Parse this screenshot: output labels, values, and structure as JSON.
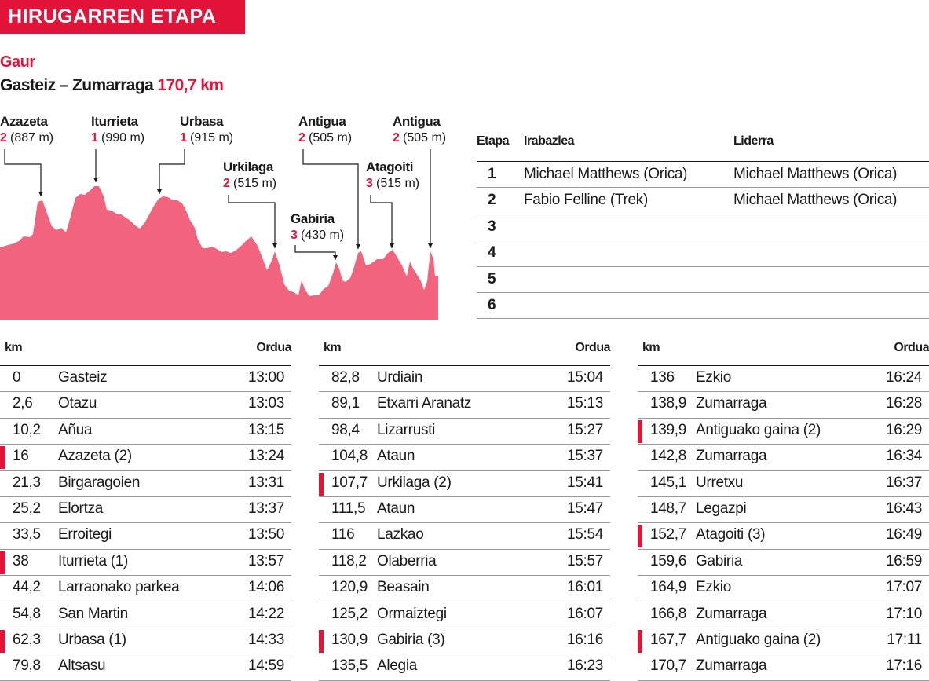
{
  "header": {
    "banner": "HIRUGARREN ETAPA",
    "today": "Gaur",
    "route": "Gasteiz – Zumarraga",
    "distance": "170,7 km"
  },
  "profile": {
    "color": "#f2647e",
    "accent": "#e3143a",
    "climbs": [
      {
        "name": "Azazeta",
        "category": "2",
        "altitude": "(887 m)"
      },
      {
        "name": "Iturrieta",
        "category": "1",
        "altitude": "(990 m)"
      },
      {
        "name": "Urbasa",
        "category": "1",
        "altitude": "(915 m)"
      },
      {
        "name": "Urkilaga",
        "category": "2",
        "altitude": "(515 m)"
      },
      {
        "name": "Gabiria",
        "category": "3",
        "altitude": "(430 m)"
      },
      {
        "name": "Antigua",
        "category": "2",
        "altitude": "(505 m)"
      },
      {
        "name": "Atagoiti",
        "category": "3",
        "altitude": "(515 m)"
      },
      {
        "name": "Antigua",
        "category": "2",
        "altitude": "(505 m)"
      }
    ]
  },
  "results": {
    "headers": {
      "stage": "Etapa",
      "winner": "Irabazlea",
      "leader": "Liderra"
    },
    "rows": [
      {
        "stage": "1",
        "winner": "Michael Matthews (Orica)",
        "leader": "Michael Matthews (Orica)"
      },
      {
        "stage": "2",
        "winner": "Fabio Felline (Trek)",
        "leader": "Michael Matthews (Orica)"
      },
      {
        "stage": "3",
        "winner": "",
        "leader": ""
      },
      {
        "stage": "4",
        "winner": "",
        "leader": ""
      },
      {
        "stage": "5",
        "winner": "",
        "leader": ""
      },
      {
        "stage": "6",
        "winner": "",
        "leader": ""
      }
    ]
  },
  "schedule": {
    "headers": {
      "km": "km",
      "time": "Orduа"
    },
    "columns": [
      [
        {
          "km": "0",
          "place": "Gasteiz",
          "time": "13:00",
          "climb": false
        },
        {
          "km": "2,6",
          "place": "Otazu",
          "time": "13:03",
          "climb": false
        },
        {
          "km": "10,2",
          "place": "Añua",
          "time": "13:15",
          "climb": false
        },
        {
          "km": "16",
          "place": "Azazeta (2)",
          "time": "13:24",
          "climb": true
        },
        {
          "km": "21,3",
          "place": "Birgaragoien",
          "time": "13:31",
          "climb": false
        },
        {
          "km": "25,2",
          "place": "Elortza",
          "time": "13:37",
          "climb": false
        },
        {
          "km": "33,5",
          "place": "Erroitegi",
          "time": "13:50",
          "climb": false
        },
        {
          "km": "38",
          "place": "Iturrieta (1)",
          "time": "13:57",
          "climb": true
        },
        {
          "km": "44,2",
          "place": "Larraonako parkea",
          "time": "14:06",
          "climb": false
        },
        {
          "km": "54,8",
          "place": "San Martin",
          "time": "14:22",
          "climb": false
        },
        {
          "km": "62,3",
          "place": "Urbasa (1)",
          "time": "14:33",
          "climb": true
        },
        {
          "km": "79,8",
          "place": "Altsasu",
          "time": "14:59",
          "climb": false
        }
      ],
      [
        {
          "km": "82,8",
          "place": "Urdiain",
          "time": "15:04",
          "climb": false
        },
        {
          "km": "89,1",
          "place": "Etxarri Aranatz",
          "time": "15:13",
          "climb": false
        },
        {
          "km": "98,4",
          "place": "Lizarrusti",
          "time": "15:27",
          "climb": false
        },
        {
          "km": "104,8",
          "place": "Ataun",
          "time": "15:37",
          "climb": false
        },
        {
          "km": "107,7",
          "place": "Urkilaga (2)",
          "time": "15:41",
          "climb": true
        },
        {
          "km": "111,5",
          "place": "Ataun",
          "time": "15:47",
          "climb": false
        },
        {
          "km": "116",
          "place": "Lazkao",
          "time": "15:54",
          "climb": false
        },
        {
          "km": "118,2",
          "place": "Olaberria",
          "time": "15:57",
          "climb": false
        },
        {
          "km": "120,9",
          "place": "Beasain",
          "time": "16:01",
          "climb": false
        },
        {
          "km": "125,2",
          "place": "Ormaiztegi",
          "time": "16:07",
          "climb": false
        },
        {
          "km": "130,9",
          "place": "Gabiria (3)",
          "time": "16:16",
          "climb": true
        },
        {
          "km": "135,5",
          "place": "Alegia",
          "time": "16:23",
          "climb": false
        }
      ],
      [
        {
          "km": "136",
          "place": "Ezkio",
          "time": "16:24",
          "climb": false
        },
        {
          "km": "138,9",
          "place": "Zumarraga",
          "time": "16:28",
          "climb": false
        },
        {
          "km": "139,9",
          "place": "Antiguako gaina (2)",
          "time": "16:29",
          "climb": true
        },
        {
          "km": "142,8",
          "place": "Zumarraga",
          "time": "16:34",
          "climb": false
        },
        {
          "km": "145,1",
          "place": "Urretxu",
          "time": "16:37",
          "climb": false
        },
        {
          "km": "148,7",
          "place": "Legazpi",
          "time": "16:43",
          "climb": false
        },
        {
          "km": "152,7",
          "place": "Atagoiti (3)",
          "time": "16:49",
          "climb": true
        },
        {
          "km": "159,6",
          "place": "Gabiria",
          "time": "16:59",
          "climb": false
        },
        {
          "km": "164,9",
          "place": "Ezkio",
          "time": "17:07",
          "climb": false
        },
        {
          "km": "166,8",
          "place": "Zumarraga",
          "time": "17:10",
          "climb": false
        },
        {
          "km": "167,7",
          "place": "Antiguako gaina (2)",
          "time": "17:11",
          "climb": true
        },
        {
          "km": "170,7",
          "place": "Zumarraga",
          "time": "17:16",
          "climb": false
        }
      ]
    ]
  }
}
